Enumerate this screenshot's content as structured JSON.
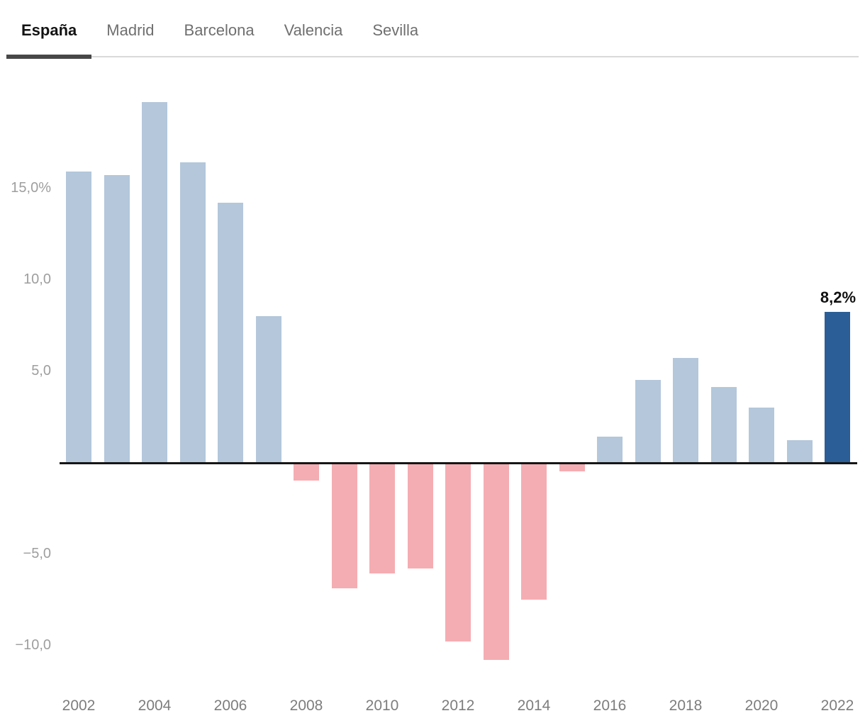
{
  "tabs": {
    "items": [
      {
        "label": "España",
        "active": true
      },
      {
        "label": "Madrid",
        "active": false
      },
      {
        "label": "Barcelona",
        "active": false
      },
      {
        "label": "Valencia",
        "active": false
      },
      {
        "label": "Sevilla",
        "active": false
      }
    ]
  },
  "chart_data": {
    "type": "bar",
    "categories": [
      "2002",
      "2003",
      "2004",
      "2005",
      "2006",
      "2007",
      "2008",
      "2009",
      "2010",
      "2011",
      "2012",
      "2013",
      "2014",
      "2015",
      "2016",
      "2017",
      "2018",
      "2019",
      "2020",
      "2021",
      "2022"
    ],
    "values": [
      15.9,
      15.7,
      19.7,
      16.4,
      14.2,
      8.0,
      -1.0,
      -6.9,
      -6.1,
      -5.8,
      -9.8,
      -10.8,
      -7.5,
      -0.5,
      1.4,
      4.5,
      5.7,
      4.1,
      3.0,
      1.2,
      8.2
    ],
    "unit": "%",
    "decimal_separator": ",",
    "ylim": [
      -12,
      20
    ],
    "grid": false,
    "legend": "none",
    "y_ticks": [
      {
        "value": 15,
        "label": "15,0%"
      },
      {
        "value": 10,
        "label": "10,0"
      },
      {
        "value": 5,
        "label": "5,0"
      },
      {
        "value": -5,
        "label": "−5,0"
      },
      {
        "value": -10,
        "label": "−10,0"
      }
    ],
    "x_tick_labels": [
      "2002",
      "2004",
      "2006",
      "2008",
      "2010",
      "2012",
      "2014",
      "2016",
      "2018",
      "2020",
      "2022"
    ],
    "highlight_category": "2022",
    "annotation": {
      "category": "2022",
      "label": "8,2%"
    },
    "colors": {
      "positive": "#b4c7db",
      "negative": "#f4adb2",
      "highlight": "#2b5e96",
      "baseline": "#161616",
      "y_tick_text": "#9e9e9e",
      "x_tick_text": "#7d7d7d",
      "active_tab_underline": "#474747",
      "tab_divider": "#d9d9d9"
    }
  }
}
